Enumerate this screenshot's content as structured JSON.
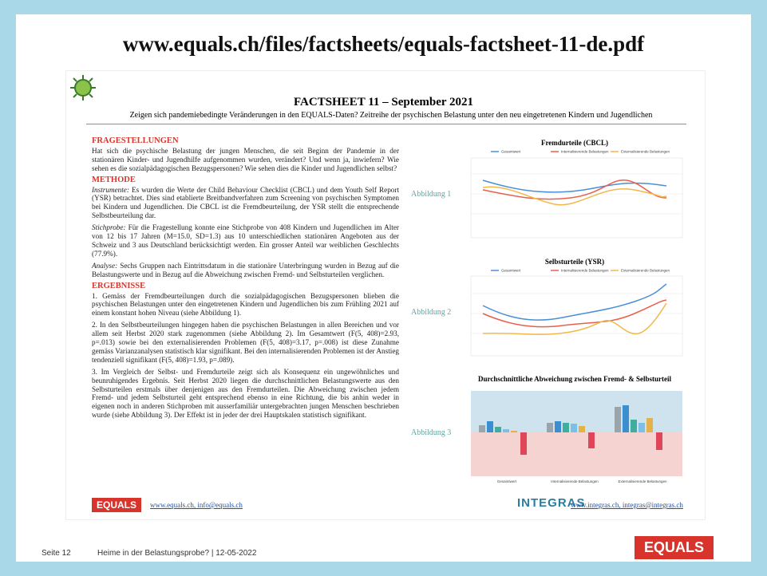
{
  "header": {
    "url": "www.equals.ch/files/factsheets/equals-factsheet-11-de.pdf"
  },
  "doc": {
    "title": "FACTSHEET 11 – September 2021",
    "subtitle": "Zeigen sich pandemiebedingte Veränderungen in den EQUALS-Daten? Zeitreihe der psychischen Belastung unter den neu eingetretenen Kindern und Jugendlichen",
    "sections": [
      {
        "heading": "FRAGESTELLUNGEN",
        "paragraphs": [
          {
            "text": "Hat sich die psychische Belastung der jungen Menschen, die seit Beginn der Pandemie in der stationären Kinder- und Jugendhilfe aufgenommen wurden, verändert? Und wenn ja, inwiefern? Wie sehen es die sozialpädagogischen Bezugspersonen? Wie sehen dies die Kinder und Jugendlichen selbst?"
          }
        ]
      },
      {
        "heading": "METHODE",
        "paragraphs": [
          {
            "lead": "Instrumente:",
            "text": " Es wurden die Werte der Child Behaviour Checklist (CBCL) und dem Youth Self Report (YSR) betrachtet. Dies sind etablierte Breitbandverfahren zum Screening von psychischen Symptomen bei Kindern und Jugendlichen. Die CBCL ist die Fremdbeurteilung, der YSR stellt die entsprechende Selbstbeurteilung dar."
          },
          {
            "lead": "Stichprobe:",
            "text": " Für die Fragestellung konnte eine Stichprobe von 408 Kindern und Jugendlichen im Alter von 12 bis 17 Jahren (M=15.0, SD=1.3) aus 10 unterschiedlichen stationären Angeboten aus der Schweiz und 3 aus Deutschland berücksichtigt werden. Ein grosser Anteil war weiblichen Geschlechts (77.9%)."
          },
          {
            "lead": "Analyse:",
            "text": " Sechs Gruppen nach Eintrittsdatum in die stationäre Unterbringung wurden in Bezug auf die Belastungswerte und in Bezug auf die Abweichung zwischen Fremd- und Selbsturteilen verglichen."
          }
        ]
      },
      {
        "heading": "ERGEBNISSE",
        "paragraphs": [
          {
            "text": "1. Gemäss der Fremdbeurteilungen durch die sozialpädagogischen Bezugspersonen blieben die psychischen Belastungen unter den eingetretenen Kindern und Jugendlichen bis zum Frühling 2021 auf einem konstant hohen Niveau (siehe Abbildung 1)."
          },
          {
            "text": "2. In den Selbstbeurteilungen hingegen haben die psychischen Belastungen in allen Bereichen und vor allem seit Herbst 2020 stark zugenommen (siehe Abbildung 2). Im Gesamtwert (F(5, 408)=2.93, p=.013) sowie bei den externalisierenden Problemen (F(5, 408)=3.17, p=.008) ist diese Zunahme gemäss Varianzanalysen statistisch klar signifikant. Bei den internalisierenden Problemen ist der Anstieg tendenziell signifikant (F(5, 408)=1.93, p=.089)."
          },
          {
            "text": "3. Im Vergleich der Selbst- und Fremdurteile zeigt sich als Konsequenz ein ungewöhnliches und beunruhigendes Ergebnis. Seit Herbst 2020 liegen die durchschnittlichen Belastungswerte aus den Selbsturteilen erstmals über denjenigen aus den Fremdurteilen. Die Abweichung zwischen jedem Fremd- und jedem Selbsturteil geht entsprechend ebenso in eine Richtung, die bis anhin weder in eigenen noch in anderen Stichproben mit ausserfamiliär untergebrachten jungen Menschen beschrieben wurde (siehe Abbildung 3). Der Effekt ist in jeder der drei Hauptskalen statistisch signifikant."
          }
        ]
      }
    ],
    "figures": [
      {
        "label": "Abbildung 1",
        "title": "Fremdurteile (CBCL)"
      },
      {
        "label": "Abbildung 2",
        "title": "Selbsturteile (YSR)"
      },
      {
        "label": "Abbildung 3",
        "title": "Durchschnittliche Abweichung zwischen Fremd- & Selbsturteil"
      }
    ],
    "legend": [
      "Gesamtwert",
      "Internalisierende Belastungen",
      "Externalisierende Belastungen"
    ],
    "footer_left": {
      "logo": "EQUALS",
      "contact": "www.equals.ch, info@equals.ch"
    },
    "footer_right": {
      "logo": "INTEGRAS",
      "contact": "www.integras.ch, integras@integras.ch"
    }
  },
  "footer": {
    "page": "Seite 12",
    "caption": "Heime in der Belastungsprobe? | 12-05-2022",
    "logo": "EQUALS"
  }
}
